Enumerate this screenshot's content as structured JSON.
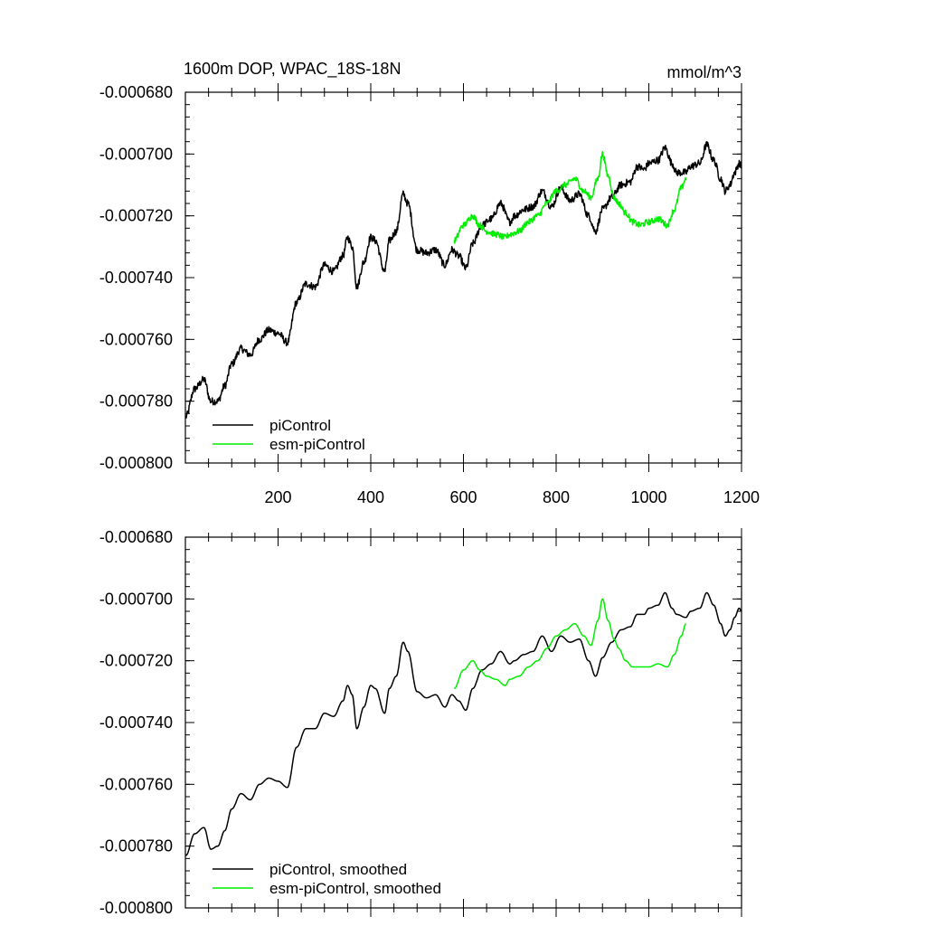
{
  "chart_data": [
    {
      "type": "line",
      "title": "1600m DOP, WPAC_18S-18N",
      "units": "mmol/m^3",
      "xlabel": "",
      "ylabel": "",
      "xlim": [
        0,
        1200
      ],
      "ylim": [
        -0.0008,
        -0.00068
      ],
      "x_ticks": [
        200,
        400,
        600,
        800,
        1000,
        1200
      ],
      "x_tick_labels": [
        "200",
        "400",
        "600",
        "800",
        "1000",
        "1200"
      ],
      "y_ticks": [
        -0.00068,
        -0.0007,
        -0.00072,
        -0.00074,
        -0.00076,
        -0.00078,
        -0.0008
      ],
      "y_tick_labels": [
        "-0.000680",
        "-0.000700",
        "-0.000720",
        "-0.000740",
        "-0.000760",
        "-0.000780",
        "-0.000800"
      ],
      "grid": false,
      "legend_position": "bottom-left",
      "series": [
        {
          "name": "piControl",
          "color": "#000000",
          "noise": 1.2e-06,
          "points": [
            [
              1,
              -0.000785
            ],
            [
              20,
              -0.000776
            ],
            [
              40,
              -0.000773
            ],
            [
              55,
              -0.00078
            ],
            [
              70,
              -0.00078
            ],
            [
              85,
              -0.000775
            ],
            [
              100,
              -0.000768
            ],
            [
              120,
              -0.000763
            ],
            [
              140,
              -0.000765
            ],
            [
              160,
              -0.00076
            ],
            [
              180,
              -0.000757
            ],
            [
              200,
              -0.000758
            ],
            [
              220,
              -0.000761
            ],
            [
              240,
              -0.000748
            ],
            [
              260,
              -0.000742
            ],
            [
              280,
              -0.000743
            ],
            [
              300,
              -0.000736
            ],
            [
              320,
              -0.000738
            ],
            [
              340,
              -0.000733
            ],
            [
              350,
              -0.000727
            ],
            [
              360,
              -0.00073
            ],
            [
              370,
              -0.000743
            ],
            [
              385,
              -0.000735
            ],
            [
              400,
              -0.000727
            ],
            [
              410,
              -0.000728
            ],
            [
              430,
              -0.000738
            ],
            [
              440,
              -0.000728
            ],
            [
              455,
              -0.000725
            ],
            [
              470,
              -0.000713
            ],
            [
              480,
              -0.000716
            ],
            [
              500,
              -0.000731
            ],
            [
              520,
              -0.000732
            ],
            [
              540,
              -0.000731
            ],
            [
              560,
              -0.000736
            ],
            [
              575,
              -0.000731
            ],
            [
              590,
              -0.000733
            ],
            [
              605,
              -0.000737
            ],
            [
              620,
              -0.000729
            ],
            [
              640,
              -0.000723
            ],
            [
              660,
              -0.000721
            ],
            [
              680,
              -0.000716
            ],
            [
              700,
              -0.000722
            ],
            [
              710,
              -0.00072
            ],
            [
              730,
              -0.000718
            ],
            [
              750,
              -0.000717
            ],
            [
              770,
              -0.000712
            ],
            [
              790,
              -0.000717
            ],
            [
              810,
              -0.000711
            ],
            [
              830,
              -0.000715
            ],
            [
              850,
              -0.000713
            ],
            [
              870,
              -0.00072
            ],
            [
              885,
              -0.000725
            ],
            [
              900,
              -0.000718
            ],
            [
              920,
              -0.000714
            ],
            [
              940,
              -0.00071
            ],
            [
              960,
              -0.000709
            ],
            [
              975,
              -0.000704
            ],
            [
              990,
              -0.000705
            ],
            [
              1000,
              -0.000703
            ],
            [
              1020,
              -0.000702
            ],
            [
              1035,
              -0.000698
            ],
            [
              1050,
              -0.000703
            ],
            [
              1060,
              -0.000706
            ],
            [
              1080,
              -0.000706
            ],
            [
              1090,
              -0.000704
            ],
            [
              1110,
              -0.000703
            ],
            [
              1125,
              -0.000697
            ],
            [
              1140,
              -0.000702
            ],
            [
              1155,
              -0.000708
            ],
            [
              1165,
              -0.000712
            ],
            [
              1175,
              -0.00071
            ],
            [
              1185,
              -0.000706
            ],
            [
              1195,
              -0.000703
            ],
            [
              1200,
              -0.000704
            ]
          ]
        },
        {
          "name": "esm-piControl",
          "color": "#00ee00",
          "noise": 1e-06,
          "points": [
            [
              580,
              -0.000728
            ],
            [
              600,
              -0.000723
            ],
            [
              620,
              -0.00072
            ],
            [
              635,
              -0.000723
            ],
            [
              650,
              -0.000725
            ],
            [
              670,
              -0.000726
            ],
            [
              690,
              -0.000727
            ],
            [
              700,
              -0.000726
            ],
            [
              720,
              -0.000725
            ],
            [
              740,
              -0.000722
            ],
            [
              760,
              -0.00072
            ],
            [
              780,
              -0.000716
            ],
            [
              800,
              -0.000712
            ],
            [
              820,
              -0.00071
            ],
            [
              840,
              -0.000708
            ],
            [
              860,
              -0.000712
            ],
            [
              875,
              -0.000714
            ],
            [
              890,
              -0.000708
            ],
            [
              900,
              -0.0007
            ],
            [
              912,
              -0.000707
            ],
            [
              925,
              -0.000714
            ],
            [
              935,
              -0.000716
            ],
            [
              950,
              -0.000719
            ],
            [
              965,
              -0.000722
            ],
            [
              980,
              -0.000723
            ],
            [
              1000,
              -0.000722
            ],
            [
              1020,
              -0.000721
            ],
            [
              1040,
              -0.000723
            ],
            [
              1055,
              -0.000718
            ],
            [
              1070,
              -0.000711
            ],
            [
              1080,
              -0.000708
            ]
          ]
        }
      ]
    },
    {
      "type": "line",
      "title": "",
      "xlabel": "",
      "ylabel": "",
      "xlim": [
        0,
        1200
      ],
      "ylim": [
        -0.0008,
        -0.00068
      ],
      "x_ticks": [
        200,
        400,
        600,
        800,
        1000,
        1200
      ],
      "x_tick_labels": [],
      "y_ticks": [
        -0.00068,
        -0.0007,
        -0.00072,
        -0.00074,
        -0.00076,
        -0.00078,
        -0.0008
      ],
      "y_tick_labels": [
        "-0.000680",
        "-0.000700",
        "-0.000720",
        "-0.000740",
        "-0.000760",
        "-0.000780",
        "-0.000800"
      ],
      "grid": false,
      "legend_position": "bottom-left",
      "series": [
        {
          "name": "piControl, smoothed",
          "color": "#000000",
          "noise": 0,
          "points": [
            [
              1,
              -0.000783
            ],
            [
              20,
              -0.000776
            ],
            [
              40,
              -0.000774
            ],
            [
              55,
              -0.000781
            ],
            [
              70,
              -0.00078
            ],
            [
              85,
              -0.000775
            ],
            [
              100,
              -0.000768
            ],
            [
              120,
              -0.000763
            ],
            [
              140,
              -0.000765
            ],
            [
              160,
              -0.00076
            ],
            [
              180,
              -0.000758
            ],
            [
              200,
              -0.000759
            ],
            [
              220,
              -0.000761
            ],
            [
              240,
              -0.000748
            ],
            [
              260,
              -0.000742
            ],
            [
              280,
              -0.000742
            ],
            [
              300,
              -0.000737
            ],
            [
              320,
              -0.000738
            ],
            [
              340,
              -0.000733
            ],
            [
              350,
              -0.000728
            ],
            [
              360,
              -0.000731
            ],
            [
              370,
              -0.000742
            ],
            [
              385,
              -0.000735
            ],
            [
              400,
              -0.000728
            ],
            [
              410,
              -0.000729
            ],
            [
              430,
              -0.000737
            ],
            [
              440,
              -0.000729
            ],
            [
              455,
              -0.000725
            ],
            [
              470,
              -0.000714
            ],
            [
              480,
              -0.000717
            ],
            [
              500,
              -0.00073
            ],
            [
              520,
              -0.000732
            ],
            [
              540,
              -0.000731
            ],
            [
              560,
              -0.000735
            ],
            [
              575,
              -0.000731
            ],
            [
              590,
              -0.000733
            ],
            [
              605,
              -0.000736
            ],
            [
              620,
              -0.000729
            ],
            [
              640,
              -0.000723
            ],
            [
              660,
              -0.000721
            ],
            [
              680,
              -0.000717
            ],
            [
              700,
              -0.000721
            ],
            [
              710,
              -0.00072
            ],
            [
              730,
              -0.000718
            ],
            [
              750,
              -0.000717
            ],
            [
              770,
              -0.000712
            ],
            [
              790,
              -0.000717
            ],
            [
              810,
              -0.000712
            ],
            [
              830,
              -0.000714
            ],
            [
              850,
              -0.000713
            ],
            [
              870,
              -0.00072
            ],
            [
              885,
              -0.000725
            ],
            [
              900,
              -0.000719
            ],
            [
              920,
              -0.000714
            ],
            [
              940,
              -0.00071
            ],
            [
              960,
              -0.000709
            ],
            [
              975,
              -0.000705
            ],
            [
              990,
              -0.000705
            ],
            [
              1000,
              -0.000703
            ],
            [
              1020,
              -0.000702
            ],
            [
              1035,
              -0.000698
            ],
            [
              1050,
              -0.000703
            ],
            [
              1060,
              -0.000705
            ],
            [
              1080,
              -0.000706
            ],
            [
              1090,
              -0.000704
            ],
            [
              1110,
              -0.000703
            ],
            [
              1125,
              -0.000698
            ],
            [
              1140,
              -0.000702
            ],
            [
              1155,
              -0.000708
            ],
            [
              1165,
              -0.000712
            ],
            [
              1175,
              -0.00071
            ],
            [
              1185,
              -0.000706
            ],
            [
              1195,
              -0.000703
            ],
            [
              1200,
              -0.000704
            ]
          ]
        },
        {
          "name": "esm-piControl, smoothed",
          "color": "#00ee00",
          "noise": 0,
          "points": [
            [
              580,
              -0.000729
            ],
            [
              600,
              -0.000723
            ],
            [
              620,
              -0.00072
            ],
            [
              635,
              -0.000723
            ],
            [
              650,
              -0.000725
            ],
            [
              670,
              -0.000726
            ],
            [
              690,
              -0.000728
            ],
            [
              700,
              -0.000726
            ],
            [
              720,
              -0.000725
            ],
            [
              740,
              -0.000722
            ],
            [
              760,
              -0.00072
            ],
            [
              780,
              -0.000716
            ],
            [
              800,
              -0.000712
            ],
            [
              820,
              -0.00071
            ],
            [
              840,
              -0.000708
            ],
            [
              860,
              -0.000712
            ],
            [
              875,
              -0.000715
            ],
            [
              890,
              -0.000707
            ],
            [
              900,
              -0.0007
            ],
            [
              912,
              -0.000707
            ],
            [
              925,
              -0.000713
            ],
            [
              935,
              -0.000716
            ],
            [
              950,
              -0.00072
            ],
            [
              965,
              -0.000722
            ],
            [
              980,
              -0.000722
            ],
            [
              1000,
              -0.000722
            ],
            [
              1020,
              -0.000721
            ],
            [
              1040,
              -0.000722
            ],
            [
              1055,
              -0.000718
            ],
            [
              1070,
              -0.000712
            ],
            [
              1080,
              -0.000708
            ]
          ]
        }
      ]
    }
  ]
}
